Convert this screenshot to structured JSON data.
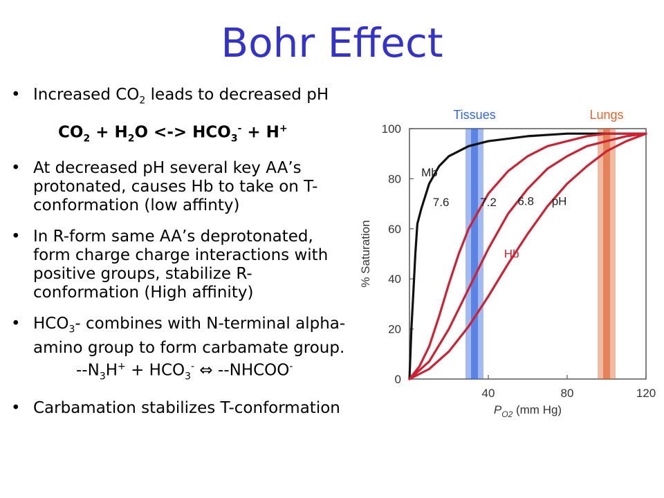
{
  "slide": {
    "title": "Bohr Effect",
    "bullet_glyph": "•",
    "b1": {
      "pre": "Increased CO",
      "sub": "2",
      "post": " leads to decreased pH"
    },
    "eq1": {
      "co": "CO",
      "co_sub": "2",
      "h2o_a": " + H",
      "h2o_sub": "2",
      "h2o_b": "O <-> HCO",
      "hco_sub": "3",
      "hco_sup": "-",
      "h": " + H",
      "h_sup": "+"
    },
    "b2": "At decreased pH several key AA’s protonated, causes Hb to take on T-conformation (low affinty)",
    "b3": "In R-form same AA’s deprotonated, form charge charge interactions with positive groups, stabilize R-conformation (High affinity)",
    "b4": {
      "pre": "HCO",
      "sub": "3",
      "post": "- combines with N-terminal alpha-amino group to form carbamate group."
    },
    "eq2": {
      "a": "--N",
      "a_sub": "3",
      "b": "H",
      "b_sup": "+",
      "c": " + HCO",
      "c_sub": "3",
      "c_sup": "-",
      "arrow": " ⇔ ",
      "d": "--NHCOO",
      "d_sup": "-"
    },
    "b5": "Carbamation stabilizes T-conformation"
  },
  "chart_data": {
    "type": "line",
    "xlabel": "P",
    "xlabel_sub": "O2",
    "xlabel_unit": " (mm Hg)",
    "ylabel": "% Saturation",
    "xlim": [
      0,
      120
    ],
    "ylim": [
      0,
      100
    ],
    "xticks": [
      "40",
      "80",
      "120"
    ],
    "yticks": [
      "0",
      "20",
      "40",
      "60",
      "80",
      "100"
    ],
    "bands": [
      {
        "label": "Tissues",
        "x": 33,
        "color": "#3366dd"
      },
      {
        "label": "Lungs",
        "x": 100,
        "color": "#dd6633"
      }
    ],
    "annotations": {
      "mb": "Mb",
      "hb": "Hb",
      "ph": "pH"
    },
    "series": [
      {
        "name": "Mb",
        "color": "#111111",
        "x": [
          0,
          1,
          2,
          3,
          4,
          6,
          10,
          15,
          20,
          30,
          40,
          60,
          80,
          100,
          120
        ],
        "y": [
          0,
          20,
          35,
          50,
          62,
          68,
          78,
          85,
          89,
          93,
          95,
          97,
          98,
          98,
          98
        ]
      },
      {
        "name": "7.6",
        "color": "#cc2233",
        "x": [
          0,
          5,
          10,
          15,
          20,
          25,
          30,
          40,
          50,
          60,
          70,
          80,
          90,
          100,
          110,
          120
        ],
        "y": [
          0,
          5,
          13,
          25,
          38,
          50,
          60,
          74,
          83,
          89,
          93,
          95,
          97,
          98,
          98,
          98
        ]
      },
      {
        "name": "7.2",
        "color": "#cc2233",
        "x": [
          0,
          10,
          20,
          30,
          40,
          50,
          60,
          70,
          80,
          90,
          100,
          110,
          120
        ],
        "y": [
          0,
          7,
          20,
          36,
          52,
          66,
          76,
          84,
          89,
          93,
          95,
          97,
          98
        ]
      },
      {
        "name": "6.8",
        "color": "#cc2233",
        "x": [
          0,
          10,
          20,
          30,
          40,
          50,
          60,
          70,
          80,
          90,
          100,
          110,
          120
        ],
        "y": [
          0,
          4,
          11,
          21,
          33,
          46,
          58,
          69,
          78,
          85,
          91,
          95,
          98
        ]
      }
    ]
  }
}
